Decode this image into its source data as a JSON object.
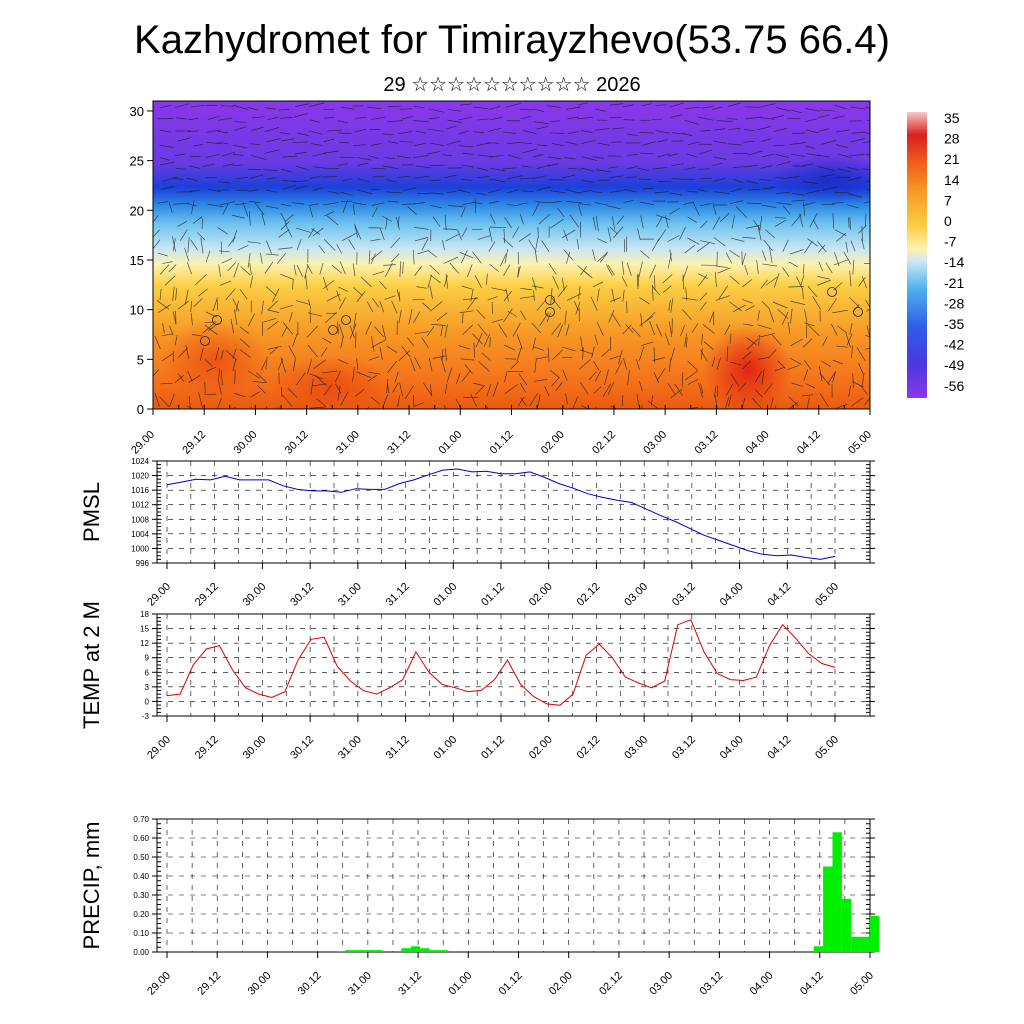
{
  "title": "Kazhydromet for Timirayzhevo(53.75 66.4)",
  "subtitle": "29 ☆☆☆☆☆☆☆☆☆☆ 2026",
  "colors": {
    "pmsl": "#0000cc",
    "temp": "#dd0000",
    "precip": "#00ee00"
  },
  "chart_data": [
    {
      "type": "heatmap",
      "name": "vertical-section",
      "xlabel": "",
      "ylabel": "",
      "x_ticks": [
        "29.00",
        "29.12",
        "30.00",
        "30.12",
        "31.00",
        "31.12",
        "01.00",
        "01.12",
        "02.00",
        "02.12",
        "03.00",
        "03.12",
        "04.00",
        "04.12",
        "05.00"
      ],
      "y_ticks": [
        "0",
        "5",
        "10",
        "15",
        "20",
        "25",
        "30"
      ],
      "ylim": [
        0,
        31
      ],
      "colorbar_labels": [
        "35",
        "28",
        "21",
        "14",
        "7",
        "0",
        "-7",
        "-14",
        "-21",
        "-28",
        "-35",
        "-42",
        "-49",
        "-56"
      ]
    },
    {
      "type": "line",
      "name": "pmsl",
      "ylabel": "PMSL",
      "ylim": [
        996,
        1024
      ],
      "y_ticks": [
        "996",
        "1000",
        "1004",
        "1008",
        "1012",
        "1016",
        "1020",
        "1024"
      ],
      "x_ticks": [
        "29.00",
        "29.12",
        "30.00",
        "30.12",
        "31.00",
        "31.12",
        "01.00",
        "01.12",
        "02.00",
        "02.12",
        "03.00",
        "03.12",
        "04.00",
        "04.12",
        "05.00"
      ],
      "values": [
        1017.5,
        1018.2,
        1019.0,
        1018.8,
        1019.8,
        1018.8,
        1018.8,
        1018.8,
        1017.2,
        1016.2,
        1015.8,
        1015.8,
        1015.4,
        1016.4,
        1016.2,
        1016.2,
        1017.8,
        1018.8,
        1020.2,
        1021.5,
        1021.8,
        1021.0,
        1021.2,
        1020.5,
        1020.5,
        1021.0,
        1019.5,
        1017.8,
        1016.5,
        1015.0,
        1014.0,
        1013.2,
        1012.6,
        1010.8,
        1009.0,
        1007.4,
        1005.5,
        1003.6,
        1002.2,
        1000.8,
        999.4,
        998.4,
        998.0,
        998.2,
        997.5,
        997.0,
        997.8
      ]
    },
    {
      "type": "line",
      "name": "temp",
      "ylabel": "TEMP at 2 M",
      "ylim": [
        -3,
        18
      ],
      "y_ticks": [
        "-3",
        "0",
        "3",
        "6",
        "9",
        "12",
        "15",
        "18"
      ],
      "x_ticks": [
        "29.00",
        "29.12",
        "30.00",
        "30.12",
        "31.00",
        "31.12",
        "01.00",
        "01.12",
        "02.00",
        "02.12",
        "03.00",
        "03.12",
        "04.00",
        "04.12",
        "05.00"
      ],
      "values": [
        1.2,
        1.5,
        7.5,
        10.8,
        11.5,
        6.5,
        2.8,
        1.5,
        0.8,
        2.0,
        8.5,
        12.8,
        13.2,
        7.2,
        4.2,
        2.2,
        1.5,
        2.8,
        4.5,
        10.2,
        6.0,
        3.5,
        2.8,
        2.0,
        2.3,
        4.5,
        8.5,
        3.5,
        1.0,
        -0.5,
        -0.8,
        1.5,
        9.5,
        11.8,
        9.0,
        5.0,
        3.8,
        2.8,
        4.2,
        15.8,
        16.8,
        10.2,
        5.8,
        4.5,
        4.3,
        5.0,
        11.5,
        15.8,
        13.0,
        9.8,
        7.8,
        7.0
      ]
    },
    {
      "type": "bar",
      "name": "precip",
      "ylabel": "PRECIP, mm",
      "ylim": [
        0,
        0.7
      ],
      "y_ticks": [
        "0.00",
        "0.10",
        "0.20",
        "0.30",
        "0.40",
        "0.50",
        "0.60",
        "0.70"
      ],
      "x_ticks": [
        "29.00",
        "29.12",
        "30.00",
        "30.12",
        "31.00",
        "31.12",
        "01.00",
        "01.12",
        "02.00",
        "02.12",
        "03.00",
        "03.12",
        "04.00",
        "04.12",
        "05.00"
      ],
      "values": [
        0,
        0,
        0,
        0,
        0,
        0,
        0,
        0,
        0,
        0,
        0,
        0,
        0,
        0,
        0,
        0,
        0,
        0,
        0.005,
        0.01,
        0.01,
        0.01,
        0.01,
        0,
        0,
        0.02,
        0.03,
        0.02,
        0.01,
        0.01,
        0,
        0,
        0,
        0,
        0,
        0,
        0,
        0,
        0,
        0,
        0,
        0,
        0,
        0,
        0,
        0,
        0,
        0,
        0,
        0,
        0,
        0,
        0,
        0,
        0,
        0,
        0,
        0,
        0,
        0,
        0,
        0,
        0,
        0,
        0,
        0,
        0,
        0,
        0,
        0.03,
        0.45,
        0.63,
        0.28,
        0.08,
        0.08,
        0.19
      ]
    }
  ]
}
